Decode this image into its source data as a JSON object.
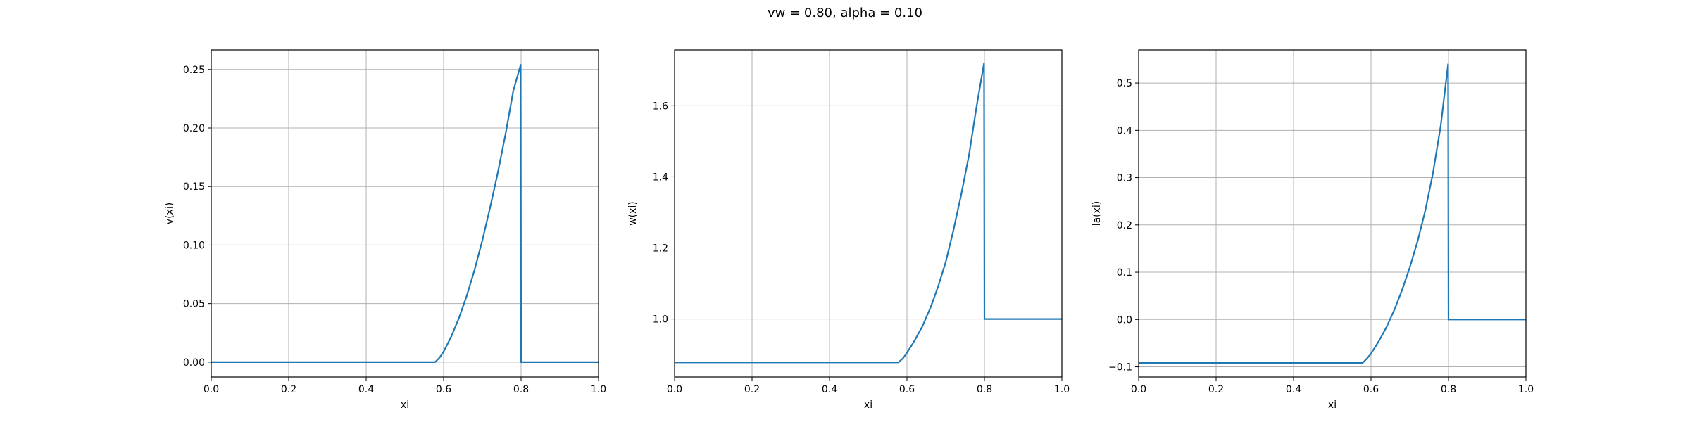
{
  "figure": {
    "suptitle": "vw = 0.80, alpha = 0.10"
  },
  "colors": {
    "line": "#1f77b4",
    "grid": "#b0b0b0",
    "axes": "#000000"
  },
  "chart_data": [
    {
      "type": "line",
      "xlabel": "xi",
      "ylabel": "v(xi)",
      "xlim": [
        0.0,
        1.0
      ],
      "ylim": [
        -0.0127,
        0.2667
      ],
      "xticks": [
        0.0,
        0.2,
        0.4,
        0.6,
        0.8,
        1.0
      ],
      "xtick_labels": [
        "0.0",
        "0.2",
        "0.4",
        "0.6",
        "0.8",
        "1.0"
      ],
      "yticks": [
        0.0,
        0.05,
        0.1,
        0.15,
        0.2,
        0.25
      ],
      "ytick_labels": [
        "0.00",
        "0.05",
        "0.10",
        "0.15",
        "0.20",
        "0.25"
      ],
      "grid": true,
      "series": [
        {
          "x": [
            0.0,
            0.578,
            0.59,
            0.6,
            0.62,
            0.64,
            0.66,
            0.68,
            0.7,
            0.72,
            0.74,
            0.76,
            0.78,
            0.799,
            0.8,
            1.0
          ],
          "y": [
            0.0,
            0.0,
            0.004,
            0.009,
            0.022,
            0.038,
            0.057,
            0.079,
            0.104,
            0.132,
            0.162,
            0.195,
            0.232,
            0.254,
            0.0,
            0.0
          ]
        }
      ]
    },
    {
      "type": "line",
      "xlabel": "xi",
      "ylabel": "w(xi)",
      "xlim": [
        0.0,
        1.0
      ],
      "ylim": [
        0.837,
        1.757
      ],
      "xticks": [
        0.0,
        0.2,
        0.4,
        0.6,
        0.8,
        1.0
      ],
      "xtick_labels": [
        "0.0",
        "0.2",
        "0.4",
        "0.6",
        "0.8",
        "1.0"
      ],
      "yticks": [
        1.0,
        1.2,
        1.4,
        1.6
      ],
      "ytick_labels": [
        "1.0",
        "1.2",
        "1.4",
        "1.6"
      ],
      "grid": true,
      "series": [
        {
          "x": [
            0.0,
            0.578,
            0.59,
            0.6,
            0.62,
            0.64,
            0.66,
            0.68,
            0.7,
            0.72,
            0.74,
            0.76,
            0.78,
            0.799,
            0.8,
            1.0
          ],
          "y": [
            0.878,
            0.878,
            0.89,
            0.905,
            0.94,
            0.98,
            1.03,
            1.09,
            1.16,
            1.25,
            1.35,
            1.46,
            1.6,
            1.72,
            1.0,
            1.0
          ]
        }
      ]
    },
    {
      "type": "line",
      "xlabel": "xi",
      "ylabel": "la(xi)",
      "xlim": [
        0.0,
        1.0
      ],
      "ylim": [
        -0.1215,
        0.57
      ],
      "xticks": [
        0.0,
        0.2,
        0.4,
        0.6,
        0.8,
        1.0
      ],
      "xtick_labels": [
        "0.0",
        "0.2",
        "0.4",
        "0.6",
        "0.8",
        "1.0"
      ],
      "yticks": [
        -0.1,
        0.0,
        0.1,
        0.2,
        0.3,
        0.4,
        0.5
      ],
      "ytick_labels": [
        "−0.1",
        "0.0",
        "0.1",
        "0.2",
        "0.3",
        "0.4",
        "0.5"
      ],
      "grid": true,
      "series": [
        {
          "x": [
            0.0,
            0.578,
            0.59,
            0.6,
            0.62,
            0.64,
            0.66,
            0.68,
            0.7,
            0.72,
            0.74,
            0.76,
            0.78,
            0.799,
            0.8,
            1.0
          ],
          "y": [
            -0.092,
            -0.092,
            -0.082,
            -0.072,
            -0.046,
            -0.016,
            0.02,
            0.062,
            0.11,
            0.165,
            0.23,
            0.31,
            0.41,
            0.54,
            0.0,
            0.0
          ]
        }
      ]
    }
  ]
}
